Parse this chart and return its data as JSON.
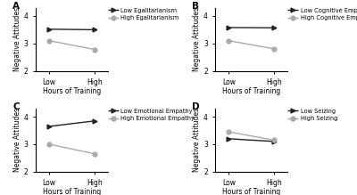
{
  "panels": [
    {
      "label": "A",
      "legend_low": "Low Egalitarianism",
      "legend_high": "High Egalitarianism",
      "low_line": [
        3.52,
        3.5
      ],
      "high_line": [
        3.1,
        2.78
      ]
    },
    {
      "label": "B",
      "legend_low": "Low Cognitive Empathy",
      "legend_high": "High Cognitive Empathy",
      "low_line": [
        3.58,
        3.57
      ],
      "high_line": [
        3.1,
        2.8
      ]
    },
    {
      "label": "C",
      "legend_low": "Low Emotional Empathy",
      "legend_high": "High Emotional Empathy",
      "low_line": [
        3.65,
        3.85
      ],
      "high_line": [
        3.0,
        2.65
      ]
    },
    {
      "label": "D",
      "legend_low": "Low Seizing",
      "legend_high": "High Seizing",
      "low_line": [
        3.2,
        3.1
      ],
      "high_line": [
        3.45,
        3.15
      ]
    }
  ],
  "x_labels": [
    "Low",
    "High"
  ],
  "xlabel": "Hours of Training",
  "ylabel": "Negative Attitudes",
  "ylim": [
    2.0,
    4.3
  ],
  "yticks": [
    2,
    3,
    4
  ],
  "color_low": "#222222",
  "color_high": "#aaaaaa",
  "markersize": 3.5,
  "linewidth": 1.0,
  "bg_color": "#ffffff",
  "legend_fontsize": 4.8,
  "tick_fontsize": 5.5,
  "label_fontsize": 5.5,
  "panel_label_fontsize": 7.5
}
